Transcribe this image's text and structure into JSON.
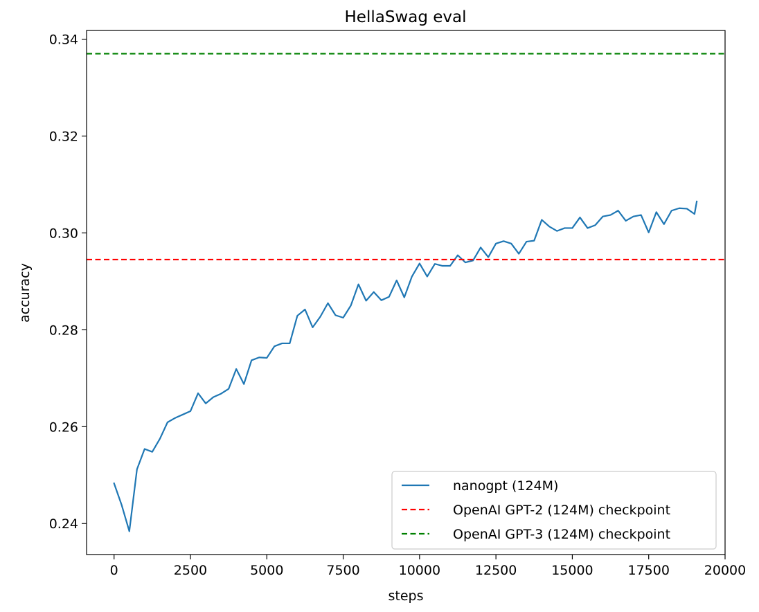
{
  "chart_data": {
    "type": "line",
    "title": "HellaSwag eval",
    "xlabel": "steps",
    "ylabel": "accuracy",
    "xlim": [
      -900,
      20000
    ],
    "ylim": [
      0.2336,
      0.3418
    ],
    "xticks": [
      0,
      2500,
      5000,
      7500,
      10000,
      12500,
      15000,
      17500,
      20000
    ],
    "xtick_labels": [
      "0",
      "2500",
      "5000",
      "7500",
      "10000",
      "12500",
      "15000",
      "17500",
      "20000"
    ],
    "yticks": [
      0.24,
      0.26,
      0.28,
      0.3,
      0.32,
      0.34
    ],
    "ytick_labels": [
      "0.24",
      "0.26",
      "0.28",
      "0.30",
      "0.32",
      "0.34"
    ],
    "grid": false,
    "legend_position": "lower-right",
    "series": [
      {
        "name": "nanogpt (124M)",
        "color": "#1f77b4",
        "style": "solid",
        "x": [
          0,
          250,
          500,
          750,
          1000,
          1250,
          1500,
          1750,
          2000,
          2250,
          2500,
          2750,
          3000,
          3250,
          3500,
          3750,
          4000,
          4250,
          4500,
          4750,
          5000,
          5250,
          5500,
          5750,
          6000,
          6250,
          6500,
          6750,
          7000,
          7250,
          7500,
          7750,
          8000,
          8250,
          8500,
          8750,
          9000,
          9250,
          9500,
          9750,
          10000,
          10250,
          10500,
          10750,
          11000,
          11250,
          11500,
          11750,
          12000,
          12250,
          12500,
          12750,
          13000,
          13250,
          13500,
          13750,
          14000,
          14250,
          14500,
          14750,
          15000,
          15250,
          15500,
          15750,
          16000,
          16250,
          16500,
          16750,
          17000,
          17250,
          17500,
          17750,
          18000,
          18250,
          18500,
          18750,
          19000,
          19073
        ],
        "y": [
          0.2483,
          0.2438,
          0.2384,
          0.2512,
          0.2554,
          0.2548,
          0.2575,
          0.2609,
          0.2618,
          0.2625,
          0.2632,
          0.2669,
          0.2648,
          0.2661,
          0.2668,
          0.2678,
          0.2719,
          0.2688,
          0.2737,
          0.2743,
          0.2742,
          0.2766,
          0.2772,
          0.2772,
          0.2829,
          0.2842,
          0.2805,
          0.2827,
          0.2855,
          0.283,
          0.2825,
          0.285,
          0.2894,
          0.286,
          0.2878,
          0.2861,
          0.2868,
          0.2902,
          0.2867,
          0.291,
          0.2937,
          0.291,
          0.2936,
          0.2932,
          0.2932,
          0.2954,
          0.2939,
          0.2943,
          0.297,
          0.295,
          0.2978,
          0.2983,
          0.2978,
          0.2957,
          0.2982,
          0.2984,
          0.3027,
          0.3013,
          0.3004,
          0.301,
          0.301,
          0.3032,
          0.301,
          0.3016,
          0.3034,
          0.3037,
          0.3046,
          0.3025,
          0.3034,
          0.3037,
          0.3001,
          0.3043,
          0.3018,
          0.3046,
          0.3051,
          0.305,
          0.3039,
          0.3065
        ]
      },
      {
        "name": "OpenAI GPT-2 (124M) checkpoint",
        "color": "#ff0000",
        "style": "dashed",
        "y": 0.2945
      },
      {
        "name": "OpenAI GPT-3 (124M) checkpoint",
        "color": "#008000",
        "style": "dashed",
        "y": 0.337
      }
    ]
  }
}
